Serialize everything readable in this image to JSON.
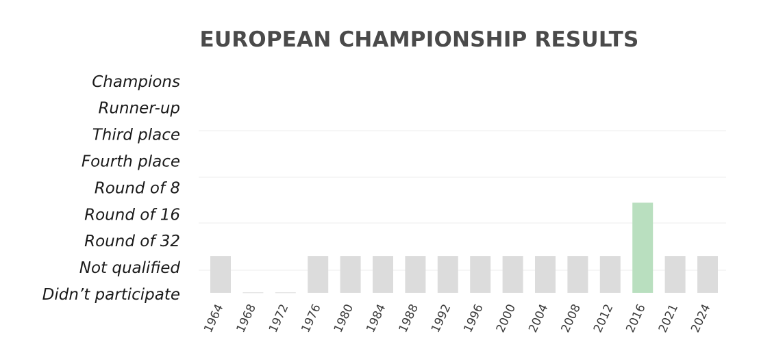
{
  "chart_data": {
    "type": "bar",
    "title": "EUROPEAN CHAMPIONSHIP RESULTS",
    "xlabel": "",
    "ylabel": "",
    "y_levels": [
      "Didn’t participate",
      "Not qualified",
      "Round of 32",
      "Round of 16",
      "Round of 8",
      "Fourth place",
      "Third place",
      "Runner-up",
      "Champions"
    ],
    "categories": [
      "1964",
      "1968",
      "1972",
      "1976",
      "1980",
      "1984",
      "1988",
      "1992",
      "1996",
      "2000",
      "2004",
      "2008",
      "2012",
      "2016",
      "2021",
      "2024"
    ],
    "values": [
      "Not qualified",
      "Didn’t participate",
      "Didn’t participate",
      "Not qualified",
      "Not qualified",
      "Not qualified",
      "Not qualified",
      "Not qualified",
      "Not qualified",
      "Not qualified",
      "Not qualified",
      "Not qualified",
      "Not qualified",
      "Round of 16",
      "Not qualified",
      "Not qualified"
    ],
    "grid": true,
    "colors": {
      "not_qualified": "#dcdcdc",
      "qualified": "#b9dfbf",
      "baseline": "#e6e6e6",
      "grid": "#f1f1f1"
    }
  }
}
